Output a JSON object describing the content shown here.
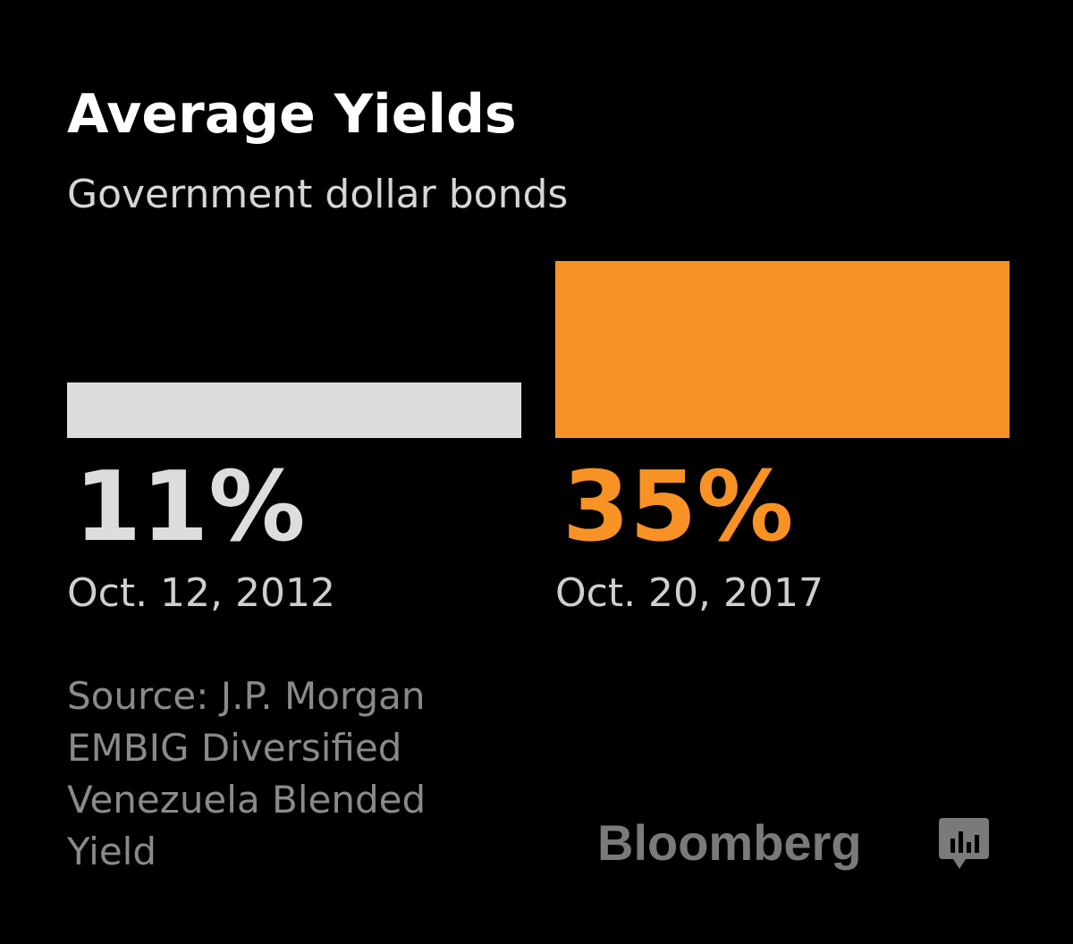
{
  "chart_data": {
    "type": "bar",
    "title": "Average Yields",
    "subtitle": "Government dollar bonds",
    "categories": [
      "Oct. 12, 2012",
      "Oct. 20, 2017"
    ],
    "values": [
      11,
      35
    ],
    "value_labels": [
      "11%",
      "35%"
    ],
    "colors": [
      "#dddddd",
      "#f99225"
    ],
    "source": [
      "Source: J.P. Morgan",
      "EMBIG Diversified",
      "Venezuela Blended",
      "Yield"
    ],
    "logo": "Bloomberg"
  }
}
